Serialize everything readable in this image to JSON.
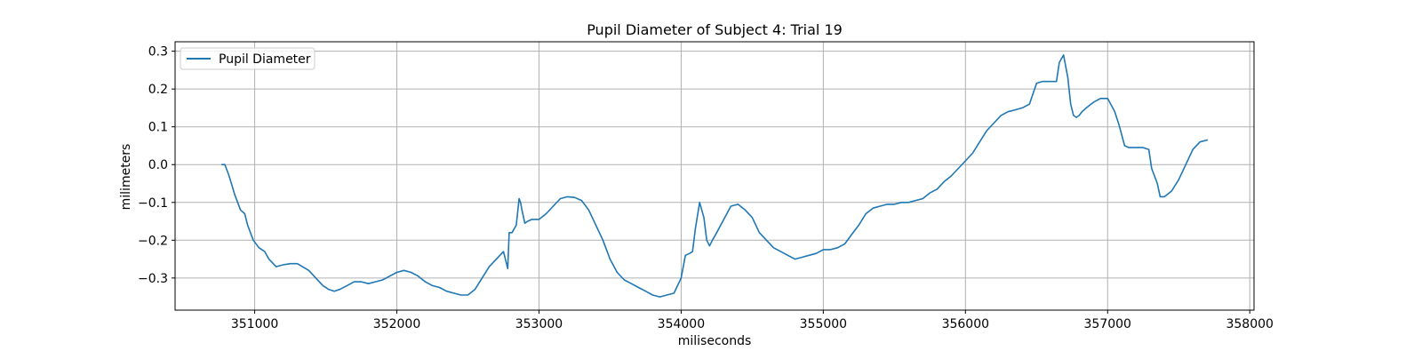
{
  "chart_data": {
    "type": "line",
    "title": "Pupil Diameter of Subject 4: Trial 19",
    "xlabel": "miliseconds",
    "ylabel": "milimeters",
    "xlim": [
      350440,
      358030
    ],
    "ylim": [
      -0.385,
      0.325
    ],
    "xticks": [
      351000,
      352000,
      353000,
      354000,
      355000,
      356000,
      357000,
      358000
    ],
    "yticks": [
      -0.3,
      -0.2,
      -0.1,
      0.0,
      0.1,
      0.2,
      0.3
    ],
    "xtick_labels": [
      "351000",
      "352000",
      "353000",
      "354000",
      "355000",
      "356000",
      "357000",
      "358000"
    ],
    "ytick_labels": [
      "−0.3",
      "−0.2",
      "−0.1",
      "0.0",
      "0.1",
      "0.2",
      "0.3"
    ],
    "grid": true,
    "legend_position": "top-left",
    "series": [
      {
        "name": "Pupil Diameter",
        "color": "#1f77b4",
        "x": [
          350770,
          350790,
          350820,
          350860,
          350900,
          350930,
          350950,
          350970,
          350990,
          351030,
          351070,
          351100,
          351150,
          351200,
          351250,
          351300,
          351380,
          351430,
          351480,
          351520,
          351560,
          351600,
          351650,
          351700,
          351750,
          351800,
          351850,
          351900,
          351950,
          352000,
          352050,
          352100,
          352150,
          352200,
          352250,
          352300,
          352350,
          352400,
          352450,
          352500,
          352550,
          352600,
          352650,
          352700,
          352750,
          352780,
          352790,
          352810,
          352840,
          352860,
          352870,
          352880,
          352900,
          352920,
          352950,
          353000,
          353050,
          353100,
          353150,
          353200,
          353250,
          353300,
          353350,
          353400,
          353450,
          353500,
          353550,
          353600,
          353650,
          353700,
          353750,
          353800,
          353850,
          353900,
          353950,
          354000,
          354030,
          354060,
          354080,
          354100,
          354130,
          354160,
          354180,
          354200,
          354220,
          354250,
          354300,
          354350,
          354400,
          354450,
          354500,
          354550,
          354600,
          354650,
          354700,
          354750,
          354800,
          354850,
          354900,
          354950,
          355000,
          355050,
          355100,
          355150,
          355200,
          355250,
          355300,
          355350,
          355400,
          355450,
          355500,
          355550,
          355600,
          355650,
          355700,
          355750,
          355800,
          355850,
          355900,
          355950,
          356000,
          356050,
          356100,
          356150,
          356200,
          356250,
          356300,
          356350,
          356400,
          356450,
          356500,
          356540,
          356600,
          356640,
          356660,
          356690,
          356700,
          356720,
          356740,
          356760,
          356780,
          356800,
          356820,
          356850,
          356900,
          356950,
          357000,
          357050,
          357080,
          357120,
          357150,
          357200,
          357250,
          357290,
          357310,
          357330,
          357350,
          357370,
          357400,
          357450,
          357500,
          357550,
          357600,
          357650,
          357700
        ],
        "y": [
          0.0,
          0.0,
          -0.03,
          -0.08,
          -0.12,
          -0.13,
          -0.16,
          -0.18,
          -0.2,
          -0.22,
          -0.23,
          -0.25,
          -0.27,
          -0.265,
          -0.262,
          -0.262,
          -0.28,
          -0.3,
          -0.32,
          -0.33,
          -0.335,
          -0.33,
          -0.32,
          -0.31,
          -0.31,
          -0.315,
          -0.31,
          -0.305,
          -0.295,
          -0.285,
          -0.28,
          -0.285,
          -0.295,
          -0.31,
          -0.32,
          -0.325,
          -0.335,
          -0.34,
          -0.345,
          -0.345,
          -0.33,
          -0.3,
          -0.27,
          -0.25,
          -0.23,
          -0.275,
          -0.18,
          -0.18,
          -0.16,
          -0.09,
          -0.1,
          -0.12,
          -0.155,
          -0.15,
          -0.145,
          -0.145,
          -0.13,
          -0.11,
          -0.09,
          -0.085,
          -0.087,
          -0.095,
          -0.12,
          -0.16,
          -0.2,
          -0.25,
          -0.285,
          -0.305,
          -0.315,
          -0.325,
          -0.335,
          -0.345,
          -0.35,
          -0.345,
          -0.34,
          -0.3,
          -0.24,
          -0.235,
          -0.23,
          -0.17,
          -0.1,
          -0.14,
          -0.2,
          -0.215,
          -0.2,
          -0.18,
          -0.145,
          -0.11,
          -0.105,
          -0.12,
          -0.14,
          -0.18,
          -0.2,
          -0.22,
          -0.23,
          -0.24,
          -0.25,
          -0.245,
          -0.24,
          -0.235,
          -0.225,
          -0.225,
          -0.22,
          -0.21,
          -0.185,
          -0.16,
          -0.13,
          -0.115,
          -0.11,
          -0.105,
          -0.105,
          -0.1,
          -0.1,
          -0.095,
          -0.09,
          -0.075,
          -0.065,
          -0.045,
          -0.03,
          -0.01,
          0.01,
          0.03,
          0.06,
          0.09,
          0.11,
          0.13,
          0.14,
          0.145,
          0.15,
          0.16,
          0.215,
          0.22,
          0.22,
          0.22,
          0.27,
          0.29,
          0.27,
          0.23,
          0.16,
          0.13,
          0.125,
          0.13,
          0.14,
          0.15,
          0.165,
          0.175,
          0.175,
          0.14,
          0.105,
          0.05,
          0.045,
          0.045,
          0.045,
          0.04,
          -0.01,
          -0.03,
          -0.05,
          -0.085,
          -0.085,
          -0.07,
          -0.04,
          0.0,
          0.04,
          0.06,
          0.065
        ]
      }
    ]
  }
}
